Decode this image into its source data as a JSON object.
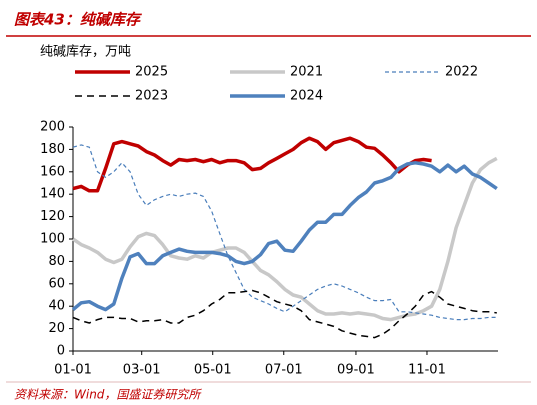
{
  "header": {
    "title": "图表43：纯碱库存"
  },
  "footer": {
    "source": "资料来源：Wind，国盛证券研究所"
  },
  "chart_data": {
    "type": "line",
    "y_label": "纯碱库存，万吨",
    "x": [
      0,
      7,
      14,
      21,
      28,
      35,
      42,
      49,
      56,
      63,
      70,
      77,
      84,
      91,
      98,
      105,
      112,
      119,
      126,
      133,
      140,
      147,
      154,
      161,
      168,
      175,
      182,
      189,
      196,
      203,
      210,
      217,
      224,
      231,
      238,
      245,
      252,
      259,
      266,
      273,
      280,
      287,
      294,
      301,
      308,
      315,
      322,
      329,
      336,
      343,
      350,
      357,
      364
    ],
    "xlim": [
      0,
      365
    ],
    "xticks": [
      {
        "value": 0,
        "label": "01-01"
      },
      {
        "value": 59,
        "label": "03-01"
      },
      {
        "value": 120,
        "label": "05-01"
      },
      {
        "value": 181,
        "label": "07-01"
      },
      {
        "value": 243,
        "label": "09-01"
      },
      {
        "value": 304,
        "label": "11-01"
      }
    ],
    "ylim": [
      0,
      200
    ],
    "yticks": [
      0,
      20,
      40,
      60,
      80,
      100,
      120,
      140,
      160,
      180,
      200
    ],
    "series": [
      {
        "name": "2025",
        "color": "#c00000",
        "style": "solid",
        "values": [
          145,
          147,
          143,
          143,
          163,
          185,
          187,
          185,
          183,
          178,
          175,
          170,
          166,
          171,
          170,
          171,
          169,
          171,
          168,
          170,
          170,
          168,
          162,
          163,
          168,
          172,
          176,
          180,
          186,
          190,
          187,
          180,
          186,
          188,
          190,
          187,
          182,
          181,
          175,
          168,
          160,
          166,
          170,
          171,
          170,
          null,
          null,
          null,
          null,
          null,
          null,
          null,
          null
        ]
      },
      {
        "name": "2021",
        "color": "#c8c8c8",
        "style": "solid",
        "values": [
          100,
          95,
          92,
          88,
          82,
          79,
          82,
          93,
          102,
          105,
          103,
          95,
          85,
          83,
          82,
          85,
          83,
          88,
          90,
          92,
          92,
          88,
          80,
          72,
          68,
          62,
          55,
          50,
          48,
          42,
          36,
          33,
          33,
          34,
          33,
          34,
          33,
          32,
          29,
          28,
          30,
          32,
          33,
          36,
          40,
          55,
          80,
          110,
          130,
          150,
          162,
          168,
          172
        ]
      },
      {
        "name": "2022",
        "color": "#4a7ebb",
        "style": "dashed",
        "values": [
          182,
          184,
          182,
          160,
          155,
          160,
          168,
          160,
          140,
          130,
          135,
          138,
          140,
          138,
          140,
          141,
          138,
          125,
          105,
          85,
          70,
          55,
          48,
          45,
          42,
          38,
          35,
          40,
          45,
          50,
          55,
          58,
          60,
          58,
          55,
          52,
          48,
          45,
          45,
          46,
          35,
          35,
          34,
          33,
          32,
          30,
          29,
          28,
          28,
          29,
          29,
          30,
          30
        ]
      },
      {
        "name": "2023",
        "color": "#000000",
        "style": "dashed",
        "values": [
          30,
          27,
          25,
          28,
          30,
          30,
          29,
          29,
          26,
          27,
          27,
          28,
          25,
          25,
          30,
          32,
          36,
          42,
          46,
          52,
          52,
          53,
          54,
          52,
          48,
          44,
          42,
          40,
          36,
          28,
          26,
          24,
          22,
          18,
          16,
          14,
          13,
          12,
          15,
          20,
          27,
          33,
          40,
          50,
          53,
          48,
          42,
          40,
          38,
          36,
          35,
          35,
          34
        ]
      },
      {
        "name": "2024",
        "color": "#4f81bd",
        "style": "solid",
        "values": [
          37,
          43,
          44,
          40,
          37,
          42,
          65,
          84,
          87,
          78,
          78,
          85,
          88,
          91,
          89,
          88,
          88,
          88,
          87,
          85,
          80,
          78,
          80,
          86,
          96,
          98,
          90,
          89,
          98,
          108,
          115,
          115,
          122,
          122,
          130,
          137,
          142,
          150,
          152,
          155,
          163,
          167,
          168,
          167,
          165,
          160,
          166,
          160,
          165,
          158,
          155,
          150,
          145
        ]
      }
    ]
  }
}
